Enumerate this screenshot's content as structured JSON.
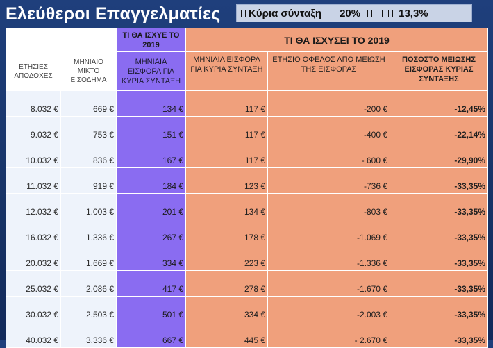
{
  "title": "Ελεύθεροι Επαγγελματίες",
  "badge": {
    "label": "Κύρια σύνταξη",
    "before": "20%",
    "after": "13,3%"
  },
  "header": {
    "old_group": "ΤΙ ΘΑ ΙΣΧΥΕ ΤΟ 2019",
    "new_group": "ΤΙ ΘΑ ΙΣΧΥΣΕΙ ΤΟ 2019"
  },
  "columns": [
    "ΕΤΗΣΙΕΣ ΑΠΟΔΟΧΕΣ",
    "ΜΗΝΙΑΙΟ ΜΙΚΤΟ ΕΙΣΟΔΗΜΑ",
    "ΜΗΝΙΑΙΑ ΕΙΣΦΟΡΑ ΓΙΑ ΚΥΡΙΑ ΣΥΝΤΑΞΗ",
    "ΜΗΝΙΑΙΑ ΕΙΣΦΟΡΑ ΓΙΑ ΚΥΡΙΑ ΣΥΝΤΑΞΗ",
    "ΕΤΗΣΙΟ ΟΦΕΛΟΣ ΑΠΟ ΜΕΙΩΣΗ ΤΗΣ ΕΙΣΦΟΡΑΣ",
    "ΠΟΣΟΣΤΟ ΜΕΙΩΣΗΣ ΕΙΣΦΟΡΑΣ ΚΥΡΙΑΣ ΣΥΝΤΑΞΗΣ"
  ],
  "rows": [
    [
      "8.032 €",
      "669 €",
      "134 €",
      "117 €",
      "-200 €",
      "-12,45%"
    ],
    [
      "9.032 €",
      "753 €",
      "151 €",
      "117 €",
      "-400 €",
      "-22,14%"
    ],
    [
      "10.032 €",
      "836 €",
      "167 €",
      "117 €",
      "- 600 €",
      "-29,90%"
    ],
    [
      "11.032 €",
      "919 €",
      "184 €",
      "123 €",
      "-736 €",
      "-33,35%"
    ],
    [
      "12.032 €",
      "1.003 €",
      "201 €",
      "134 €",
      "-803 €",
      "-33,35%"
    ],
    [
      "16.032 €",
      "1.336 €",
      "267 €",
      "178 €",
      "-1.069 €",
      "-33,35%"
    ],
    [
      "20.032 €",
      "1.669 €",
      "334 €",
      "223 €",
      "-1.336 €",
      "-33,35%"
    ],
    [
      "25.032 €",
      "2.086 €",
      "417 €",
      "278 €",
      "-1.670 €",
      "-33,35%"
    ],
    [
      "30.032 €",
      "2.503 €",
      "501 €",
      "334 €",
      "-2.003 €",
      "-33,35%"
    ],
    [
      "40.032 €",
      "3.336 €",
      "667 €",
      "445 €",
      "- 2.670 €",
      "-33,35%"
    ]
  ],
  "colors": {
    "violet": "#8a6cf1",
    "salmon": "#f0a07c",
    "background": "#1f3f7c"
  }
}
